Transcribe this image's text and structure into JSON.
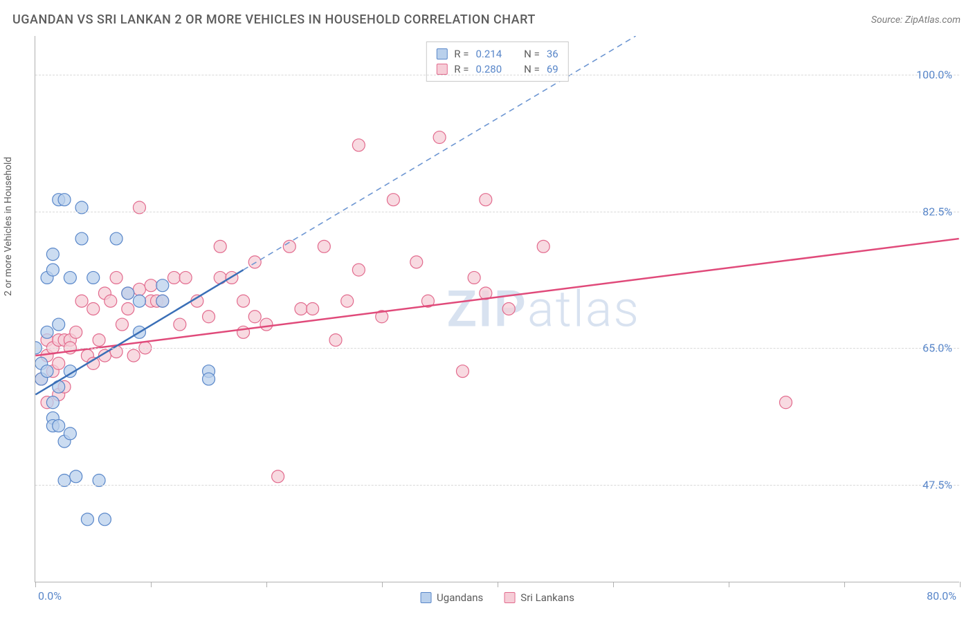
{
  "header": {
    "title": "UGANDAN VS SRI LANKAN 2 OR MORE VEHICLES IN HOUSEHOLD CORRELATION CHART",
    "source": "Source: ZipAtlas.com"
  },
  "chart": {
    "type": "scatter",
    "y_axis_label": "2 or more Vehicles in Household",
    "xlim": [
      0,
      80
    ],
    "ylim": [
      35,
      105
    ],
    "x_ticks": [
      0,
      10,
      20,
      30,
      40,
      50,
      60,
      70,
      80
    ],
    "y_gridlines": [
      47.5,
      65.0,
      82.5,
      100.0
    ],
    "y_tick_labels": [
      "47.5%",
      "65.0%",
      "82.5%",
      "100.0%"
    ],
    "x_axis_start_label": "0.0%",
    "x_axis_end_label": "80.0%",
    "background_color": "#ffffff",
    "grid_color": "#d8d8d8",
    "axis_color": "#b0b0b0",
    "tick_label_color": "#5886c9",
    "watermark": "ZIPatlas",
    "watermark_color": "#d8e2f0"
  },
  "series": {
    "ugandans": {
      "label": "Ugandans",
      "marker_fill": "#b9d0ec",
      "marker_stroke": "#5886c9",
      "marker_radius": 9,
      "line_color": "#3a6fb7",
      "line_width": 2.5,
      "dash_color": "#6d96d2",
      "R": "0.214",
      "N": "36",
      "regression": {
        "x1": 0,
        "y1": 59,
        "x2": 18,
        "y2": 75,
        "dash_x2": 52,
        "dash_y2": 105
      },
      "points": [
        [
          0,
          65
        ],
        [
          0.5,
          63
        ],
        [
          0.5,
          61
        ],
        [
          1,
          62
        ],
        [
          1,
          67
        ],
        [
          1,
          74
        ],
        [
          1.5,
          77
        ],
        [
          1.5,
          75
        ],
        [
          1.5,
          58
        ],
        [
          1.5,
          56
        ],
        [
          1.5,
          55
        ],
        [
          2,
          84
        ],
        [
          2,
          68
        ],
        [
          2,
          60
        ],
        [
          2,
          55
        ],
        [
          2.5,
          84
        ],
        [
          2.5,
          53
        ],
        [
          2.5,
          48
        ],
        [
          3,
          74
        ],
        [
          3,
          62
        ],
        [
          3,
          54
        ],
        [
          3.5,
          48.5
        ],
        [
          4,
          83
        ],
        [
          4,
          79
        ],
        [
          4.5,
          43
        ],
        [
          5,
          74
        ],
        [
          5.5,
          48
        ],
        [
          6,
          43
        ],
        [
          7,
          79
        ],
        [
          8,
          72
        ],
        [
          9,
          71
        ],
        [
          9,
          67
        ],
        [
          11,
          73
        ],
        [
          11,
          71
        ],
        [
          15,
          62
        ],
        [
          15,
          61
        ]
      ]
    },
    "sri_lankans": {
      "label": "Sri Lankans",
      "marker_fill": "#f6cdd7",
      "marker_stroke": "#e26a8d",
      "marker_radius": 9,
      "line_color": "#e04a7a",
      "line_width": 2.5,
      "R": "0.280",
      "N": "69",
      "regression": {
        "x1": 0,
        "y1": 64,
        "x2": 80,
        "y2": 79
      },
      "points": [
        [
          0.5,
          61
        ],
        [
          1,
          64
        ],
        [
          1,
          66
        ],
        [
          1,
          58
        ],
        [
          1.5,
          65
        ],
        [
          1.5,
          62
        ],
        [
          2,
          66
        ],
        [
          2,
          63
        ],
        [
          2,
          59
        ],
        [
          2.5,
          66
        ],
        [
          2.5,
          60
        ],
        [
          3,
          66
        ],
        [
          3,
          65
        ],
        [
          3.5,
          67
        ],
        [
          4,
          71
        ],
        [
          4.5,
          64
        ],
        [
          5,
          70
        ],
        [
          5,
          63
        ],
        [
          5.5,
          66
        ],
        [
          6,
          72
        ],
        [
          6,
          64
        ],
        [
          6.5,
          71
        ],
        [
          7,
          74
        ],
        [
          7,
          64.5
        ],
        [
          7.5,
          68
        ],
        [
          8,
          72
        ],
        [
          8,
          70
        ],
        [
          8.5,
          64
        ],
        [
          9,
          83
        ],
        [
          9,
          72.5
        ],
        [
          9.5,
          65
        ],
        [
          10,
          73
        ],
        [
          10,
          71
        ],
        [
          10.5,
          71
        ],
        [
          11,
          71
        ],
        [
          12,
          74
        ],
        [
          12.5,
          68
        ],
        [
          13,
          74
        ],
        [
          14,
          71
        ],
        [
          15,
          69
        ],
        [
          16,
          78
        ],
        [
          16,
          74
        ],
        [
          17,
          74
        ],
        [
          18,
          71
        ],
        [
          18,
          67
        ],
        [
          19,
          76
        ],
        [
          19,
          69
        ],
        [
          20,
          68
        ],
        [
          21,
          48.5
        ],
        [
          22,
          78
        ],
        [
          23,
          70
        ],
        [
          24,
          70
        ],
        [
          25,
          78
        ],
        [
          26,
          66
        ],
        [
          27,
          71
        ],
        [
          28,
          75
        ],
        [
          28,
          91
        ],
        [
          30,
          69
        ],
        [
          31,
          84
        ],
        [
          33,
          76
        ],
        [
          34,
          71
        ],
        [
          35,
          92
        ],
        [
          37,
          62
        ],
        [
          38,
          74
        ],
        [
          39,
          84
        ],
        [
          39,
          72
        ],
        [
          41,
          70
        ],
        [
          44,
          78
        ],
        [
          65,
          58
        ]
      ]
    }
  },
  "stats_box": {
    "r_label": "R =",
    "n_label": "N ="
  },
  "bottom_legend": {
    "items": [
      "ugandans",
      "sri_lankans"
    ]
  }
}
